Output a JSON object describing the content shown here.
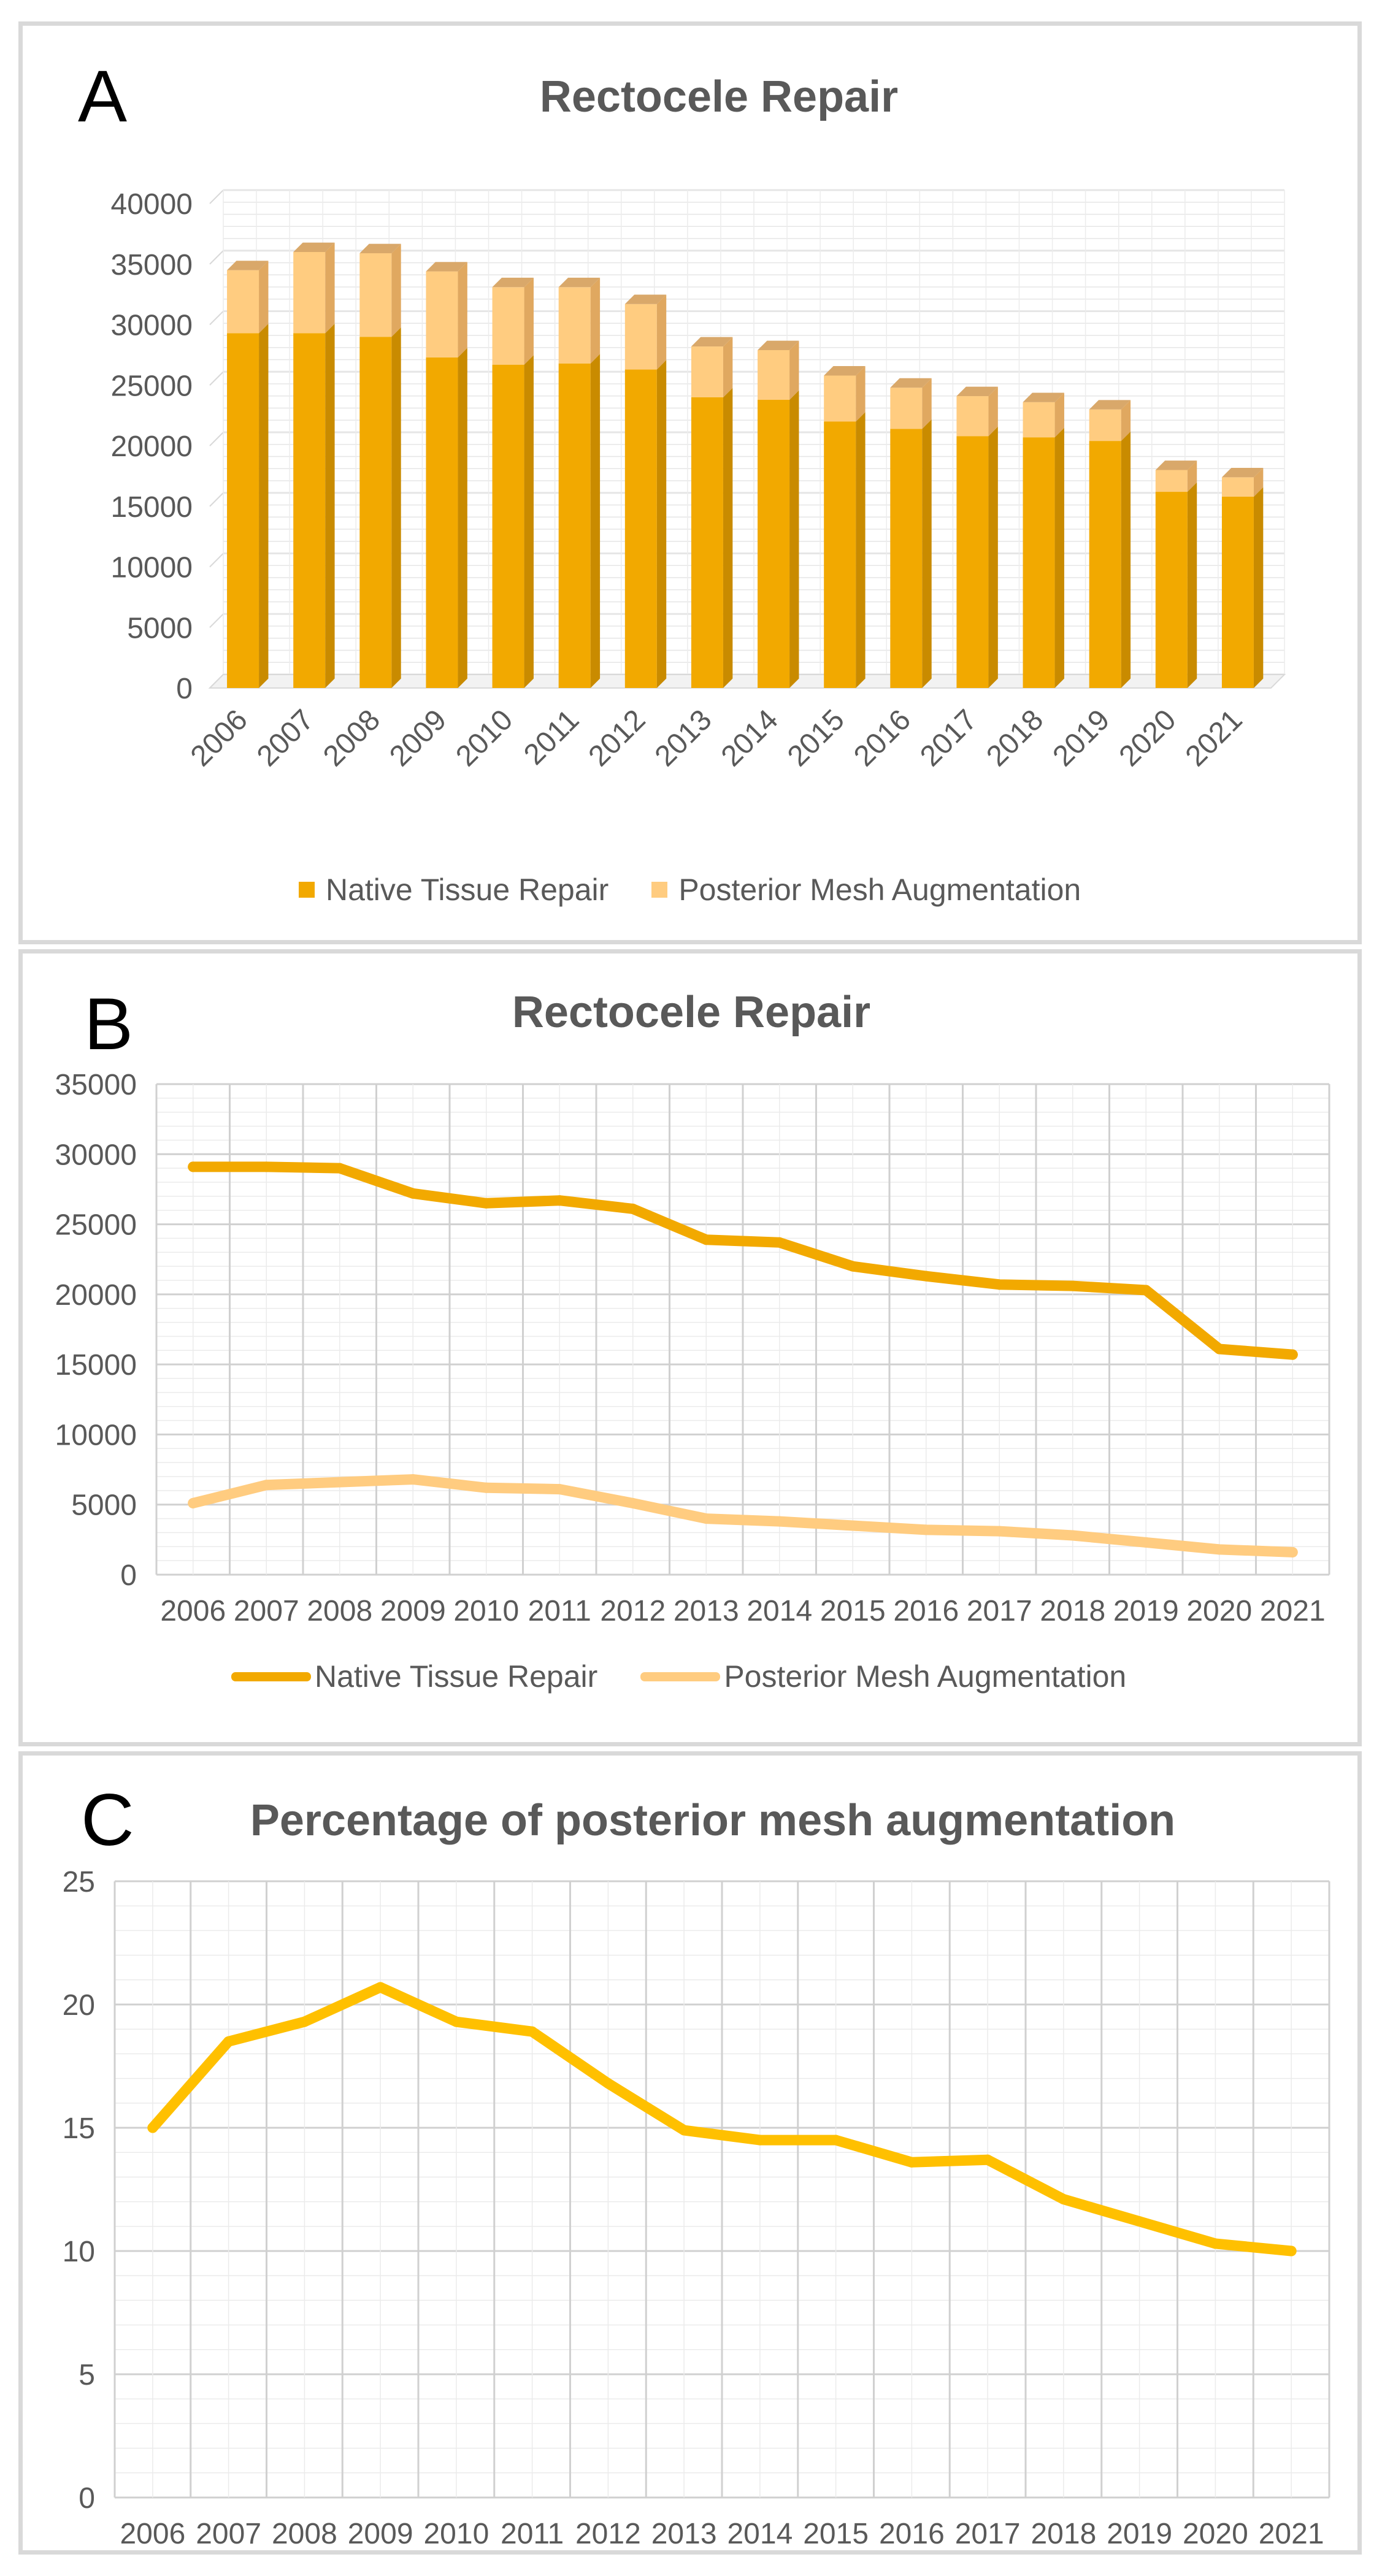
{
  "colors": {
    "native": "#f2a900",
    "native_side": "#c98b00",
    "mesh": "#ffcc80",
    "mesh_side": "#e0a860",
    "pct_line": "#ffc000",
    "grid": "#d9d9d9",
    "text": "#595959",
    "title": "#595959",
    "border": "#d9d9d9"
  },
  "panels": {
    "a": {
      "letter": "A"
    },
    "b": {
      "letter": "B"
    },
    "c": {
      "letter": "C"
    }
  },
  "chart_data": [
    {
      "id": "A",
      "type": "bar",
      "stacked": true,
      "style": "3d",
      "title": "Rectocele Repair",
      "xlabel": "",
      "ylabel": "",
      "ylim": [
        0,
        40000
      ],
      "yticks": [
        0,
        5000,
        10000,
        15000,
        20000,
        25000,
        30000,
        35000,
        40000
      ],
      "categories": [
        "2006",
        "2007",
        "2008",
        "2009",
        "2010",
        "2011",
        "2012",
        "2013",
        "2014",
        "2015",
        "2016",
        "2017",
        "2018",
        "2019",
        "2020",
        "2021"
      ],
      "series": [
        {
          "name": "Native Tissue Repair",
          "values": [
            29300,
            29300,
            29000,
            27300,
            26700,
            26800,
            26300,
            24000,
            23800,
            22000,
            21400,
            20800,
            20700,
            20400,
            16200,
            15800
          ]
        },
        {
          "name": "Posterior Mesh Augmentation",
          "values": [
            5200,
            6700,
            6900,
            7100,
            6400,
            6300,
            5400,
            4200,
            4100,
            3800,
            3400,
            3300,
            2900,
            2600,
            1800,
            1600
          ]
        }
      ],
      "grid": true,
      "legend": "bottom"
    },
    {
      "id": "B",
      "type": "line",
      "title": "Rectocele Repair",
      "xlabel": "",
      "ylabel": "",
      "ylim": [
        0,
        35000
      ],
      "yticks": [
        0,
        5000,
        10000,
        15000,
        20000,
        25000,
        30000,
        35000
      ],
      "categories": [
        "2006",
        "2007",
        "2008",
        "2009",
        "2010",
        "2011",
        "2012",
        "2013",
        "2014",
        "2015",
        "2016",
        "2017",
        "2018",
        "2019",
        "2020",
        "2021"
      ],
      "series": [
        {
          "name": "Native Tissue Repair",
          "values": [
            29100,
            29100,
            29000,
            27200,
            26500,
            26700,
            26100,
            23900,
            23700,
            22000,
            21300,
            20700,
            20600,
            20300,
            16100,
            15700
          ]
        },
        {
          "name": "Posterior Mesh Augmentation",
          "values": [
            5100,
            6400,
            6600,
            6800,
            6200,
            6100,
            5100,
            4000,
            3800,
            3500,
            3200,
            3100,
            2800,
            2300,
            1800,
            1600
          ]
        }
      ],
      "grid": true,
      "legend": "bottom"
    },
    {
      "id": "C",
      "type": "line",
      "title": "Percentage of posterior mesh augmentation",
      "xlabel": "",
      "ylabel": "",
      "ylim": [
        0,
        25
      ],
      "yticks": [
        0,
        5,
        10,
        15,
        20,
        25
      ],
      "categories": [
        "2006",
        "2007",
        "2008",
        "2009",
        "2010",
        "2011",
        "2012",
        "2013",
        "2014",
        "2015",
        "2016",
        "2017",
        "2018",
        "2019",
        "2020",
        "2021"
      ],
      "series": [
        {
          "values": [
            15.0,
            18.5,
            19.3,
            20.7,
            19.3,
            18.9,
            16.8,
            14.9,
            14.5,
            14.5,
            13.6,
            13.7,
            12.1,
            11.2,
            10.3,
            10.0
          ]
        }
      ],
      "grid": true,
      "legend": "none"
    }
  ]
}
